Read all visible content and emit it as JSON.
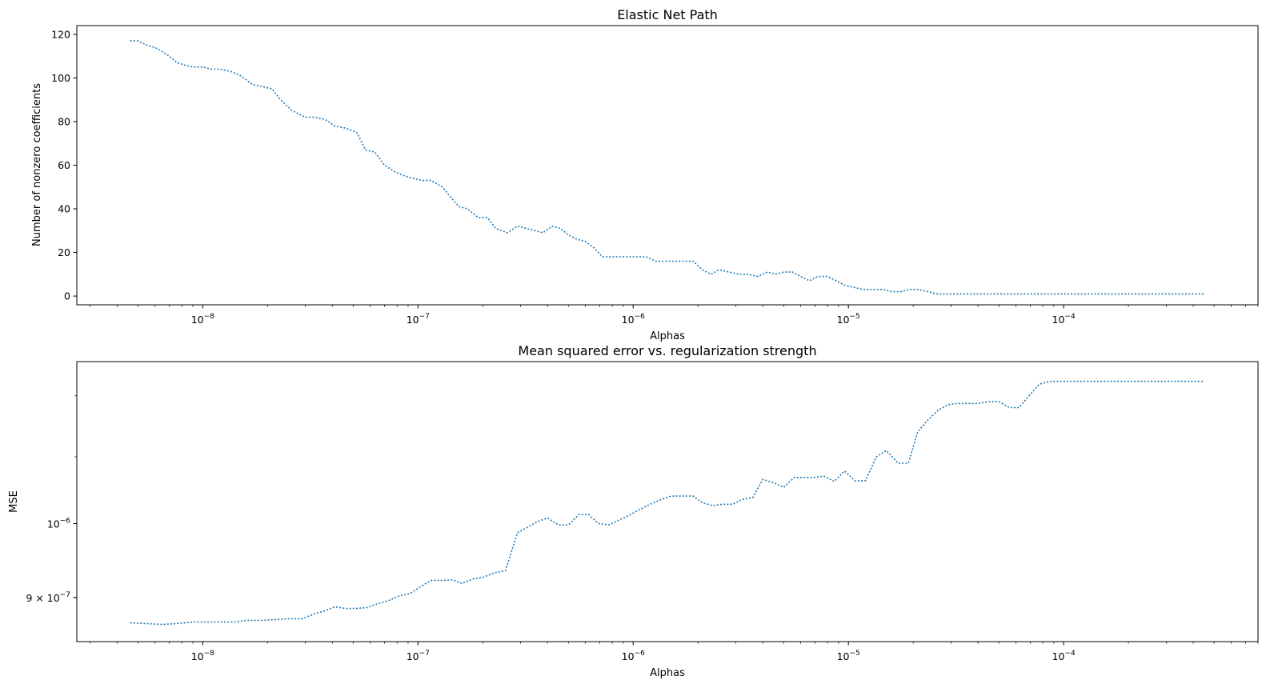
{
  "chart_data": [
    {
      "type": "line",
      "title": "Elastic Net Path",
      "xlabel": "Alphas",
      "ylabel": "Number of nonzero coefficients",
      "xscale": "log",
      "yscale": "linear",
      "xlim": [
        2.6e-09,
        0.0008
      ],
      "ylim": [
        -4,
        124
      ],
      "yticks": [
        0,
        20,
        40,
        60,
        80,
        100,
        120
      ],
      "xticks": [
        {
          "value": 1e-08,
          "base": "10",
          "exp": "−8"
        },
        {
          "value": 1e-07,
          "base": "10",
          "exp": "−7"
        },
        {
          "value": 1e-06,
          "base": "10",
          "exp": "−6"
        },
        {
          "value": 1e-05,
          "base": "10",
          "exp": "−5"
        },
        {
          "value": 0.0001,
          "base": "10",
          "exp": "−4"
        }
      ],
      "line_style": "dotted",
      "color": "#1f77b4",
      "series": [
        {
          "x": [
            4.6e-09,
            5e-09,
            5.5e-09,
            6e-09,
            6.5e-09,
            7e-09,
            7.6e-09,
            8.2e-09,
            9e-09,
            1e-08,
            1.1e-08,
            1.2e-08,
            1.35e-08,
            1.5e-08,
            1.7e-08,
            1.9e-08,
            2.1e-08,
            2.3e-08,
            2.6e-08,
            3e-08,
            3.3e-08,
            3.7e-08,
            4.1e-08,
            4.6e-08,
            5.2e-08,
            5.7e-08,
            6.3e-08,
            7e-08,
            7.8e-08,
            8.7e-08,
            9.5e-08,
            1.05e-07,
            1.15e-07,
            1.3e-07,
            1.4e-07,
            1.55e-07,
            1.7e-07,
            1.9e-07,
            2.1e-07,
            2.3e-07,
            2.6e-07,
            2.9e-07,
            3.2e-07,
            3.5e-07,
            3.8e-07,
            4.2e-07,
            4.6e-07,
            5e-07,
            5.5e-07,
            6e-07,
            6.6e-07,
            7.2e-07,
            7.8e-07,
            8.6e-07,
            9.4e-07,
            1.05e-06,
            1.15e-06,
            1.27e-06,
            1.4e-06,
            1.55e-06,
            1.7e-06,
            1.9e-06,
            2.1e-06,
            2.3e-06,
            2.5e-06,
            2.8e-06,
            3.1e-06,
            3.4e-06,
            3.8e-06,
            4.2e-06,
            4.6e-06,
            5e-06,
            5.5e-06,
            6e-06,
            6.6e-06,
            7.2e-06,
            8e-06,
            8.8e-06,
            9.6e-06,
            1.06e-05,
            1.17e-05,
            1.3e-05,
            1.45e-05,
            1.6e-05,
            1.75e-05,
            1.93e-05,
            2.12e-05,
            2.34e-05,
            2.58e-05,
            2.85e-05,
            3.15e-05,
            3.47e-05,
            3.83e-05,
            4.22e-05,
            4.66e-05,
            5.14e-05,
            5.67e-05,
            6.25e-05,
            6.9e-05,
            7.6e-05,
            8.4e-05,
            9.3e-05,
            0.000103,
            0.00012,
            0.00014,
            0.00017,
            0.0002,
            0.00024,
            0.00029,
            0.00035,
            0.00045
          ],
          "y": [
            117,
            117,
            115,
            114,
            112,
            110,
            107,
            106,
            105,
            105,
            104,
            104,
            103,
            101,
            97,
            96,
            95,
            90,
            85,
            82,
            82,
            81,
            78,
            77,
            75,
            67,
            66,
            60,
            57,
            55,
            54,
            53,
            53,
            50,
            46,
            41,
            40,
            36,
            36,
            31,
            29,
            32,
            31,
            30,
            29,
            32,
            31,
            28,
            26,
            25,
            22,
            18,
            18,
            18,
            18,
            18,
            18,
            16,
            16,
            16,
            16,
            16,
            12,
            10,
            12,
            11,
            10,
            10,
            9,
            11,
            10,
            11,
            11,
            9,
            7,
            9,
            9,
            7,
            5,
            4,
            3,
            3,
            3,
            2,
            2,
            3,
            3,
            2,
            1,
            1,
            1,
            1,
            1,
            1,
            1,
            1,
            1,
            1,
            1,
            1,
            1,
            1,
            1,
            1,
            1,
            1,
            1,
            1,
            1,
            1,
            1
          ]
        }
      ]
    },
    {
      "type": "line",
      "title": "Mean squared error vs. regularization strength",
      "xlabel": "Alphas",
      "ylabel": "MSE",
      "xscale": "log",
      "yscale": "log",
      "xlim": [
        2.6e-09,
        0.0008
      ],
      "ylim": [
        8.45e-07,
        1.26e-06
      ],
      "yticks": [
        {
          "value": 1e-06,
          "label": "10",
          "exp": "−6"
        },
        {
          "value": 9e-07,
          "label": "9 × 10",
          "exp": "−7"
        }
      ],
      "xticks": [
        {
          "value": 1e-08,
          "base": "10",
          "exp": "−8"
        },
        {
          "value": 1e-07,
          "base": "10",
          "exp": "−7"
        },
        {
          "value": 1e-06,
          "base": "10",
          "exp": "−6"
        },
        {
          "value": 1e-05,
          "base": "10",
          "exp": "−5"
        },
        {
          "value": 0.0001,
          "base": "10",
          "exp": "−4"
        }
      ],
      "line_style": "dotted",
      "color": "#1f77b4",
      "series": [
        {
          "x": [
            4.6e-09,
            5.5e-09,
            6.5e-09,
            7.6e-09,
            9e-09,
            1.05e-08,
            1.2e-08,
            1.4e-08,
            1.6e-08,
            1.9e-08,
            2.2e-08,
            2.5e-08,
            2.9e-08,
            3.3e-08,
            3.7e-08,
            4.1e-08,
            4.6e-08,
            5.2e-08,
            5.8e-08,
            6.5e-08,
            7.3e-08,
            8.2e-08,
            9.2e-08,
            1.03e-07,
            1.15e-07,
            1.3e-07,
            1.45e-07,
            1.6e-07,
            1.8e-07,
            2e-07,
            2.25e-07,
            2.55e-07,
            2.9e-07,
            3.2e-07,
            3.6e-07,
            4e-07,
            4.5e-07,
            5e-07,
            5.6e-07,
            6.2e-07,
            6.9e-07,
            7.7e-07,
            8.6e-07,
            9.6e-07,
            1.07e-06,
            1.2e-06,
            1.35e-06,
            1.5e-06,
            1.7e-06,
            1.9e-06,
            2.1e-06,
            2.35e-06,
            2.6e-06,
            2.9e-06,
            3.2e-06,
            3.6e-06,
            4e-06,
            4.5e-06,
            5e-06,
            5.6e-06,
            6.2e-06,
            6.9e-06,
            7.7e-06,
            8.6e-06,
            9.6e-06,
            1.07e-05,
            1.2e-05,
            1.35e-05,
            1.5e-05,
            1.7e-05,
            1.9e-05,
            2.1e-05,
            2.35e-05,
            2.6e-05,
            2.9e-05,
            3.2e-05,
            3.6e-05,
            4e-05,
            4.5e-05,
            5e-05,
            5.6e-05,
            6.2e-05,
            6.9e-05,
            7.7e-05,
            8.6e-05,
            9.6e-05,
            0.00012,
            0.00015,
            0.0002,
            0.00027,
            0.00035,
            0.00045
          ],
          "y": [
            8.68e-07,
            8.67e-07,
            8.66e-07,
            8.67e-07,
            8.69e-07,
            8.69e-07,
            8.69e-07,
            8.69e-07,
            8.71e-07,
            8.71e-07,
            8.72e-07,
            8.73e-07,
            8.73e-07,
            8.79e-07,
            8.83e-07,
            8.88e-07,
            8.86e-07,
            8.86e-07,
            8.87e-07,
            8.92e-07,
            8.96e-07,
            9.02e-07,
            9.05e-07,
            9.14e-07,
            9.22e-07,
            9.22e-07,
            9.23e-07,
            9.18e-07,
            9.24e-07,
            9.26e-07,
            9.32e-07,
            9.35e-07,
            9.87e-07,
            9.94e-07,
            1.003e-06,
            1.008e-06,
            9.98e-07,
            9.98e-07,
            1.013e-06,
            1.013e-06,
            1e-06,
            9.98e-07,
            1.005e-06,
            1.012e-06,
            1.02e-06,
            1.028e-06,
            1.035e-06,
            1.04e-06,
            1.04e-06,
            1.04e-06,
            1.03e-06,
            1.026e-06,
            1.028e-06,
            1.028e-06,
            1.035e-06,
            1.038e-06,
            1.065e-06,
            1.06e-06,
            1.053e-06,
            1.068e-06,
            1.068e-06,
            1.068e-06,
            1.07e-06,
            1.062e-06,
            1.078e-06,
            1.063e-06,
            1.063e-06,
            1.1e-06,
            1.11e-06,
            1.09e-06,
            1.09e-06,
            1.14e-06,
            1.16e-06,
            1.175e-06,
            1.185e-06,
            1.187e-06,
            1.187e-06,
            1.187e-06,
            1.19e-06,
            1.19e-06,
            1.18e-06,
            1.18e-06,
            1.2e-06,
            1.22e-06,
            1.225e-06,
            1.225e-06,
            1.225e-06,
            1.225e-06,
            1.225e-06,
            1.225e-06,
            1.225e-06,
            1.225e-06
          ]
        }
      ]
    }
  ]
}
